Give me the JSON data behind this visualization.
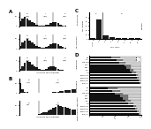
{
  "A_data": [
    [
      5,
      8,
      10,
      8,
      6,
      4,
      3,
      2,
      1,
      1,
      1,
      2,
      2,
      3,
      4,
      4,
      3,
      2,
      1,
      1,
      0,
      0,
      0,
      0
    ],
    [
      3,
      6,
      8,
      10,
      8,
      6,
      4,
      3,
      2,
      1,
      1,
      2,
      3,
      4,
      5,
      5,
      4,
      3,
      2,
      1,
      0,
      0,
      0,
      0
    ],
    [
      2,
      4,
      7,
      9,
      8,
      6,
      4,
      3,
      2,
      1,
      1,
      2,
      3,
      4,
      4,
      3,
      2,
      1,
      1,
      0,
      0,
      0,
      0,
      0
    ]
  ],
  "A_titles": [
    "Ertapenem",
    "Meropenem",
    "Imipenem"
  ],
  "A_vlines": [
    7,
    14
  ],
  "B_data": [
    [
      28,
      10,
      4,
      2,
      1,
      1,
      0,
      0,
      0,
      0,
      0,
      0,
      1,
      1,
      2,
      3,
      4,
      5,
      6,
      7,
      8,
      9,
      10,
      11
    ],
    [
      1,
      0,
      0,
      0,
      0,
      0,
      1,
      1,
      2,
      3,
      4,
      5,
      7,
      9,
      11,
      13,
      15,
      14,
      13,
      12,
      11,
      10,
      9,
      8
    ]
  ],
  "B_titles": [
    "Ceftazidime",
    "Ceftazidime/Avibactam"
  ],
  "B_vlines": [
    8
  ],
  "C_bars": [
    3,
    45,
    8,
    5,
    3,
    2,
    1,
    1
  ],
  "C_xlabels": [
    "<0.06",
    "1",
    "2",
    "4",
    "8",
    "16",
    "32",
    "64"
  ],
  "C_vline": 1.5,
  "D_group1_cats": [
    "CAZ-AVI",
    "MEM+AZT",
    "MEM+FOF",
    "MEM+COL",
    "TGC",
    "COL",
    "AMK",
    "GEN",
    "TMP-SMX",
    "FOF",
    "RIF"
  ],
  "D_group1_s": [
    95,
    92,
    88,
    85,
    75,
    70,
    65,
    60,
    50,
    45,
    35
  ],
  "D_group1_i": [
    2,
    3,
    5,
    5,
    10,
    10,
    10,
    15,
    15,
    15,
    20
  ],
  "D_group1_r": [
    3,
    5,
    7,
    10,
    15,
    20,
    25,
    25,
    35,
    40,
    45
  ],
  "D_group2_cats": [
    "CAZ-AVI",
    "MEM+AZT",
    "MEM+FOF",
    "MEM+COL",
    "TGC",
    "COL",
    "AMK",
    "GEN",
    "TMP-SMX",
    "FOF",
    "RIF"
  ],
  "D_group2_s": [
    98,
    95,
    92,
    90,
    82,
    78,
    72,
    68,
    58,
    52,
    42
  ],
  "D_group2_i": [
    1,
    2,
    3,
    4,
    8,
    8,
    8,
    12,
    12,
    13,
    18
  ],
  "D_group2_r": [
    1,
    3,
    5,
    6,
    10,
    14,
    20,
    20,
    30,
    35,
    40
  ],
  "bg_color": "#ffffff",
  "bar_color": "#1a1a1a"
}
